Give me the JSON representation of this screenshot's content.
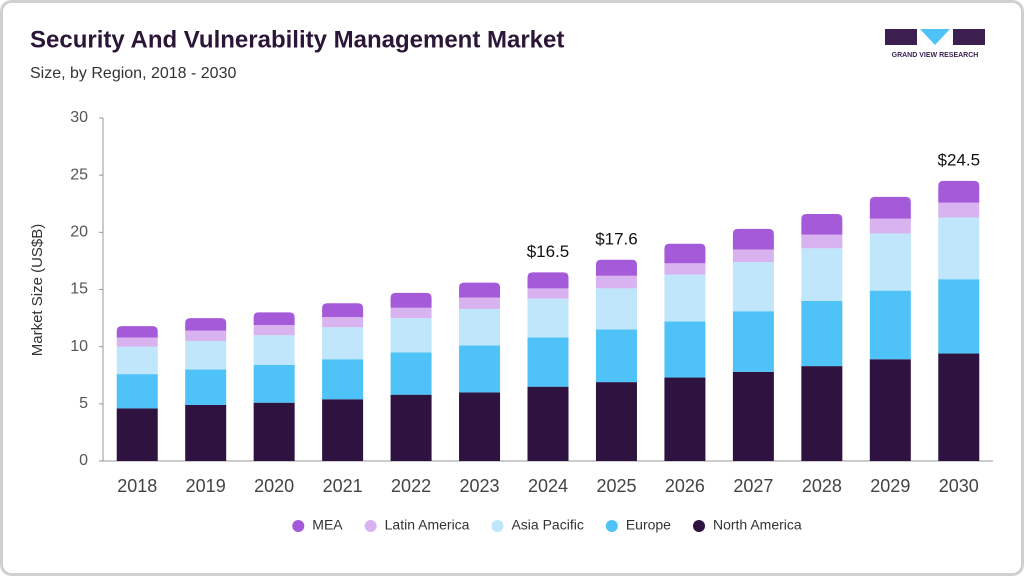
{
  "logo_text": "GRAND VIEW RESEARCH",
  "chart_data": {
    "type": "stacked-bar",
    "title": "Security And Vulnerability Management Market",
    "subtitle": "Size, by Region, 2018 - 2030",
    "y_label": "Market Size (US$B)",
    "categories": [
      "2018",
      "2019",
      "2020",
      "2021",
      "2022",
      "2023",
      "2024",
      "2025",
      "2026",
      "2027",
      "2028",
      "2029",
      "2030"
    ],
    "series": [
      {
        "name": "MEA",
        "color": "#a55ad9",
        "values": [
          1.0,
          1.1,
          1.1,
          1.2,
          1.3,
          1.3,
          1.4,
          1.4,
          1.7,
          1.8,
          1.8,
          1.9,
          1.9
        ]
      },
      {
        "name": "Latin America",
        "color": "#d9b3ef",
        "values": [
          0.8,
          0.9,
          0.9,
          0.9,
          0.9,
          1.0,
          0.9,
          1.1,
          1.0,
          1.1,
          1.2,
          1.3,
          1.3
        ]
      },
      {
        "name": "Asia Pacific",
        "color": "#bfe6fb",
        "values": [
          2.4,
          2.5,
          2.6,
          2.8,
          3.0,
          3.2,
          3.4,
          3.6,
          4.1,
          4.3,
          4.6,
          5.0,
          5.4
        ]
      },
      {
        "name": "Europe",
        "color": "#4fc3f7",
        "values": [
          3.0,
          3.1,
          3.3,
          3.5,
          3.7,
          4.1,
          4.3,
          4.6,
          4.9,
          5.3,
          5.7,
          6.0,
          6.5
        ]
      },
      {
        "name": "North America",
        "color": "#2e1240",
        "values": [
          4.6,
          4.9,
          5.1,
          5.4,
          5.8,
          6.0,
          6.5,
          6.9,
          7.3,
          7.8,
          8.3,
          8.9,
          9.4
        ]
      }
    ],
    "total_labels": [
      null,
      null,
      null,
      null,
      null,
      null,
      "$16.5",
      "$17.6",
      null,
      null,
      null,
      null,
      "$24.5"
    ],
    "ylim": [
      0,
      30
    ],
    "yticks": [
      0,
      5,
      10,
      15,
      20,
      25,
      30
    ],
    "grid": false,
    "legend": "bottom"
  }
}
